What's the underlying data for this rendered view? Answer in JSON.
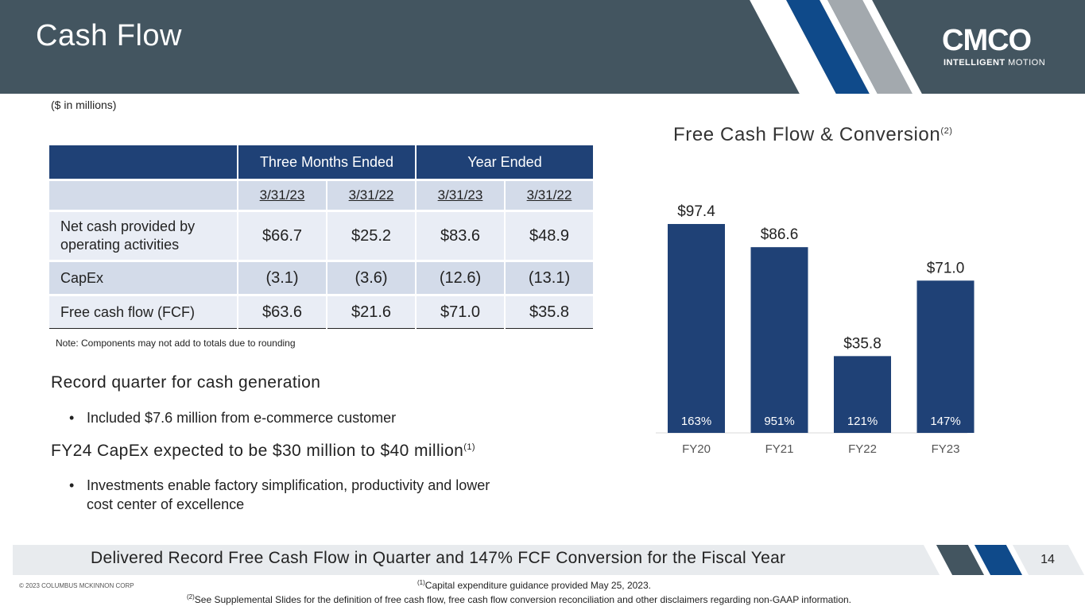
{
  "title": "Cash Flow",
  "logo": {
    "word": "CMCO",
    "tag_bold": "INTELLIGENT",
    "tag_light": "MOTION"
  },
  "units_note": "($ in millions)",
  "table": {
    "group_headers": [
      "Three Months Ended",
      "Year Ended"
    ],
    "dates": [
      "3/31/23",
      "3/31/22",
      "3/31/23",
      "3/31/22"
    ],
    "rows": [
      {
        "label": "Net cash provided by operating activities",
        "values": [
          "$66.7",
          "$25.2",
          "$83.6",
          "$48.9"
        ]
      },
      {
        "label": "CapEx",
        "values": [
          "(3.1)",
          "(3.6)",
          "(12.6)",
          "(13.1)"
        ]
      },
      {
        "label": "Free cash flow (FCF)",
        "values": [
          "$63.6",
          "$21.6",
          "$71.0",
          "$35.8"
        ]
      }
    ],
    "note": "Note: Components may not add to totals due to rounding"
  },
  "highlights": [
    {
      "heading": "Record quarter for cash generation",
      "sup": "",
      "bullet": "Included $7.6 million from e-commerce customer"
    },
    {
      "heading": "FY24 CapEx expected to be $30 million to $40 million",
      "sup": "(1)",
      "bullet": "Investments enable factory simplification, productivity and lower cost center of excellence"
    }
  ],
  "chart_title": "Free Cash Flow & Conversion",
  "chart_title_sup": "(2)",
  "chart_data": {
    "type": "bar",
    "categories": [
      "FY20",
      "FY21",
      "FY22",
      "FY23"
    ],
    "values": [
      97.4,
      86.6,
      35.8,
      71.0
    ],
    "value_labels": [
      "$97.4",
      "$86.6",
      "$35.8",
      "$71.0"
    ],
    "conversion_labels": [
      "163%",
      "951%",
      "121%",
      "147%"
    ],
    "ylim": [
      0,
      100
    ],
    "bar_color": "#1f4176",
    "grid": false
  },
  "footer": {
    "banner": "Delivered Record Free Cash Flow in Quarter and 147% FCF Conversion for the Fiscal Year",
    "page_number": "14",
    "copyright": "© 2023 COLUMBUS MCKINNON CORP",
    "footnotes": [
      {
        "mark": "(1)",
        "text": "Capital expenditure guidance provided May 25, 2023."
      },
      {
        "mark": "(2)",
        "text": "See Supplemental Slides for the definition of free cash flow, free cash flow conversion reconciliation and other disclaimers regarding non-GAAP information."
      }
    ]
  },
  "colors": {
    "header": "#435560",
    "navy": "#1f4176",
    "blue_stripe": "#0f4a8a",
    "gray_stripe": "#a3a9ae",
    "light_fill": "#e9edf5",
    "mid_fill": "#d3dbe9"
  }
}
